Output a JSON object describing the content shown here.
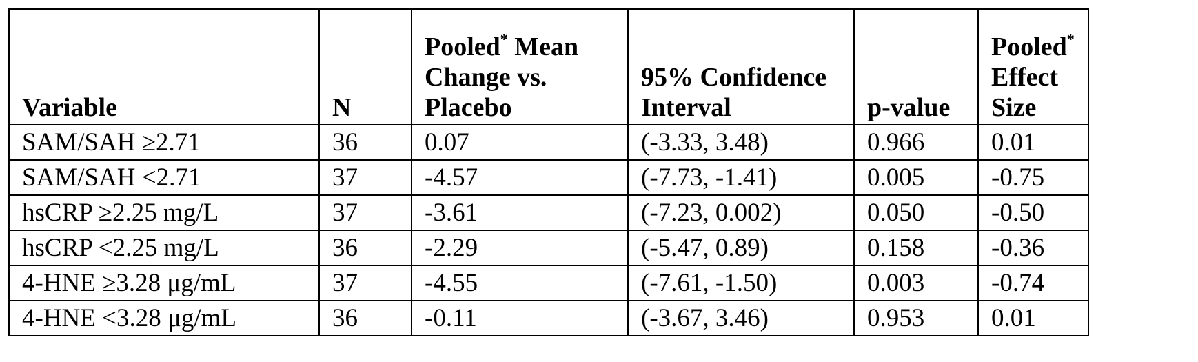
{
  "table": {
    "headers": {
      "variable": "Variable",
      "n": "N",
      "mean_change": {
        "pre": "Pooled",
        "sup": "*",
        "post": " Mean Change vs. Placebo"
      },
      "ci": "95% Confidence Interval",
      "pvalue": "p-value",
      "effect": {
        "pre": "Pooled",
        "sup": "*",
        "post": " Effect Size"
      }
    },
    "rows": [
      {
        "variable": "SAM/SAH ≥2.71",
        "n": "36",
        "mean_change": "0.07",
        "ci": "(-3.33, 3.48)",
        "pvalue": "0.966",
        "effect": "0.01"
      },
      {
        "variable": "SAM/SAH <2.71",
        "n": "37",
        "mean_change": "-4.57",
        "ci": "(-7.73, -1.41)",
        "pvalue": "0.005",
        "effect": "-0.75"
      },
      {
        "variable": "hsCRP ≥2.25 mg/L",
        "n": "37",
        "mean_change": "-3.61",
        "ci": "(-7.23, 0.002)",
        "pvalue": "0.050",
        "effect": "-0.50"
      },
      {
        "variable": "hsCRP <2.25 mg/L",
        "n": "36",
        "mean_change": "-2.29",
        "ci": "(-5.47, 0.89)",
        "pvalue": "0.158",
        "effect": "-0.36"
      },
      {
        "variable": "4-HNE ≥3.28 μg/mL",
        "n": "37",
        "mean_change": "-4.55",
        "ci": "(-7.61, -1.50)",
        "pvalue": "0.003",
        "effect": "-0.74"
      },
      {
        "variable": "4-HNE <3.28 μg/mL",
        "n": "36",
        "mean_change": "-0.11",
        "ci": "(-3.67, 3.46)",
        "pvalue": "0.953",
        "effect": "0.01"
      }
    ]
  }
}
